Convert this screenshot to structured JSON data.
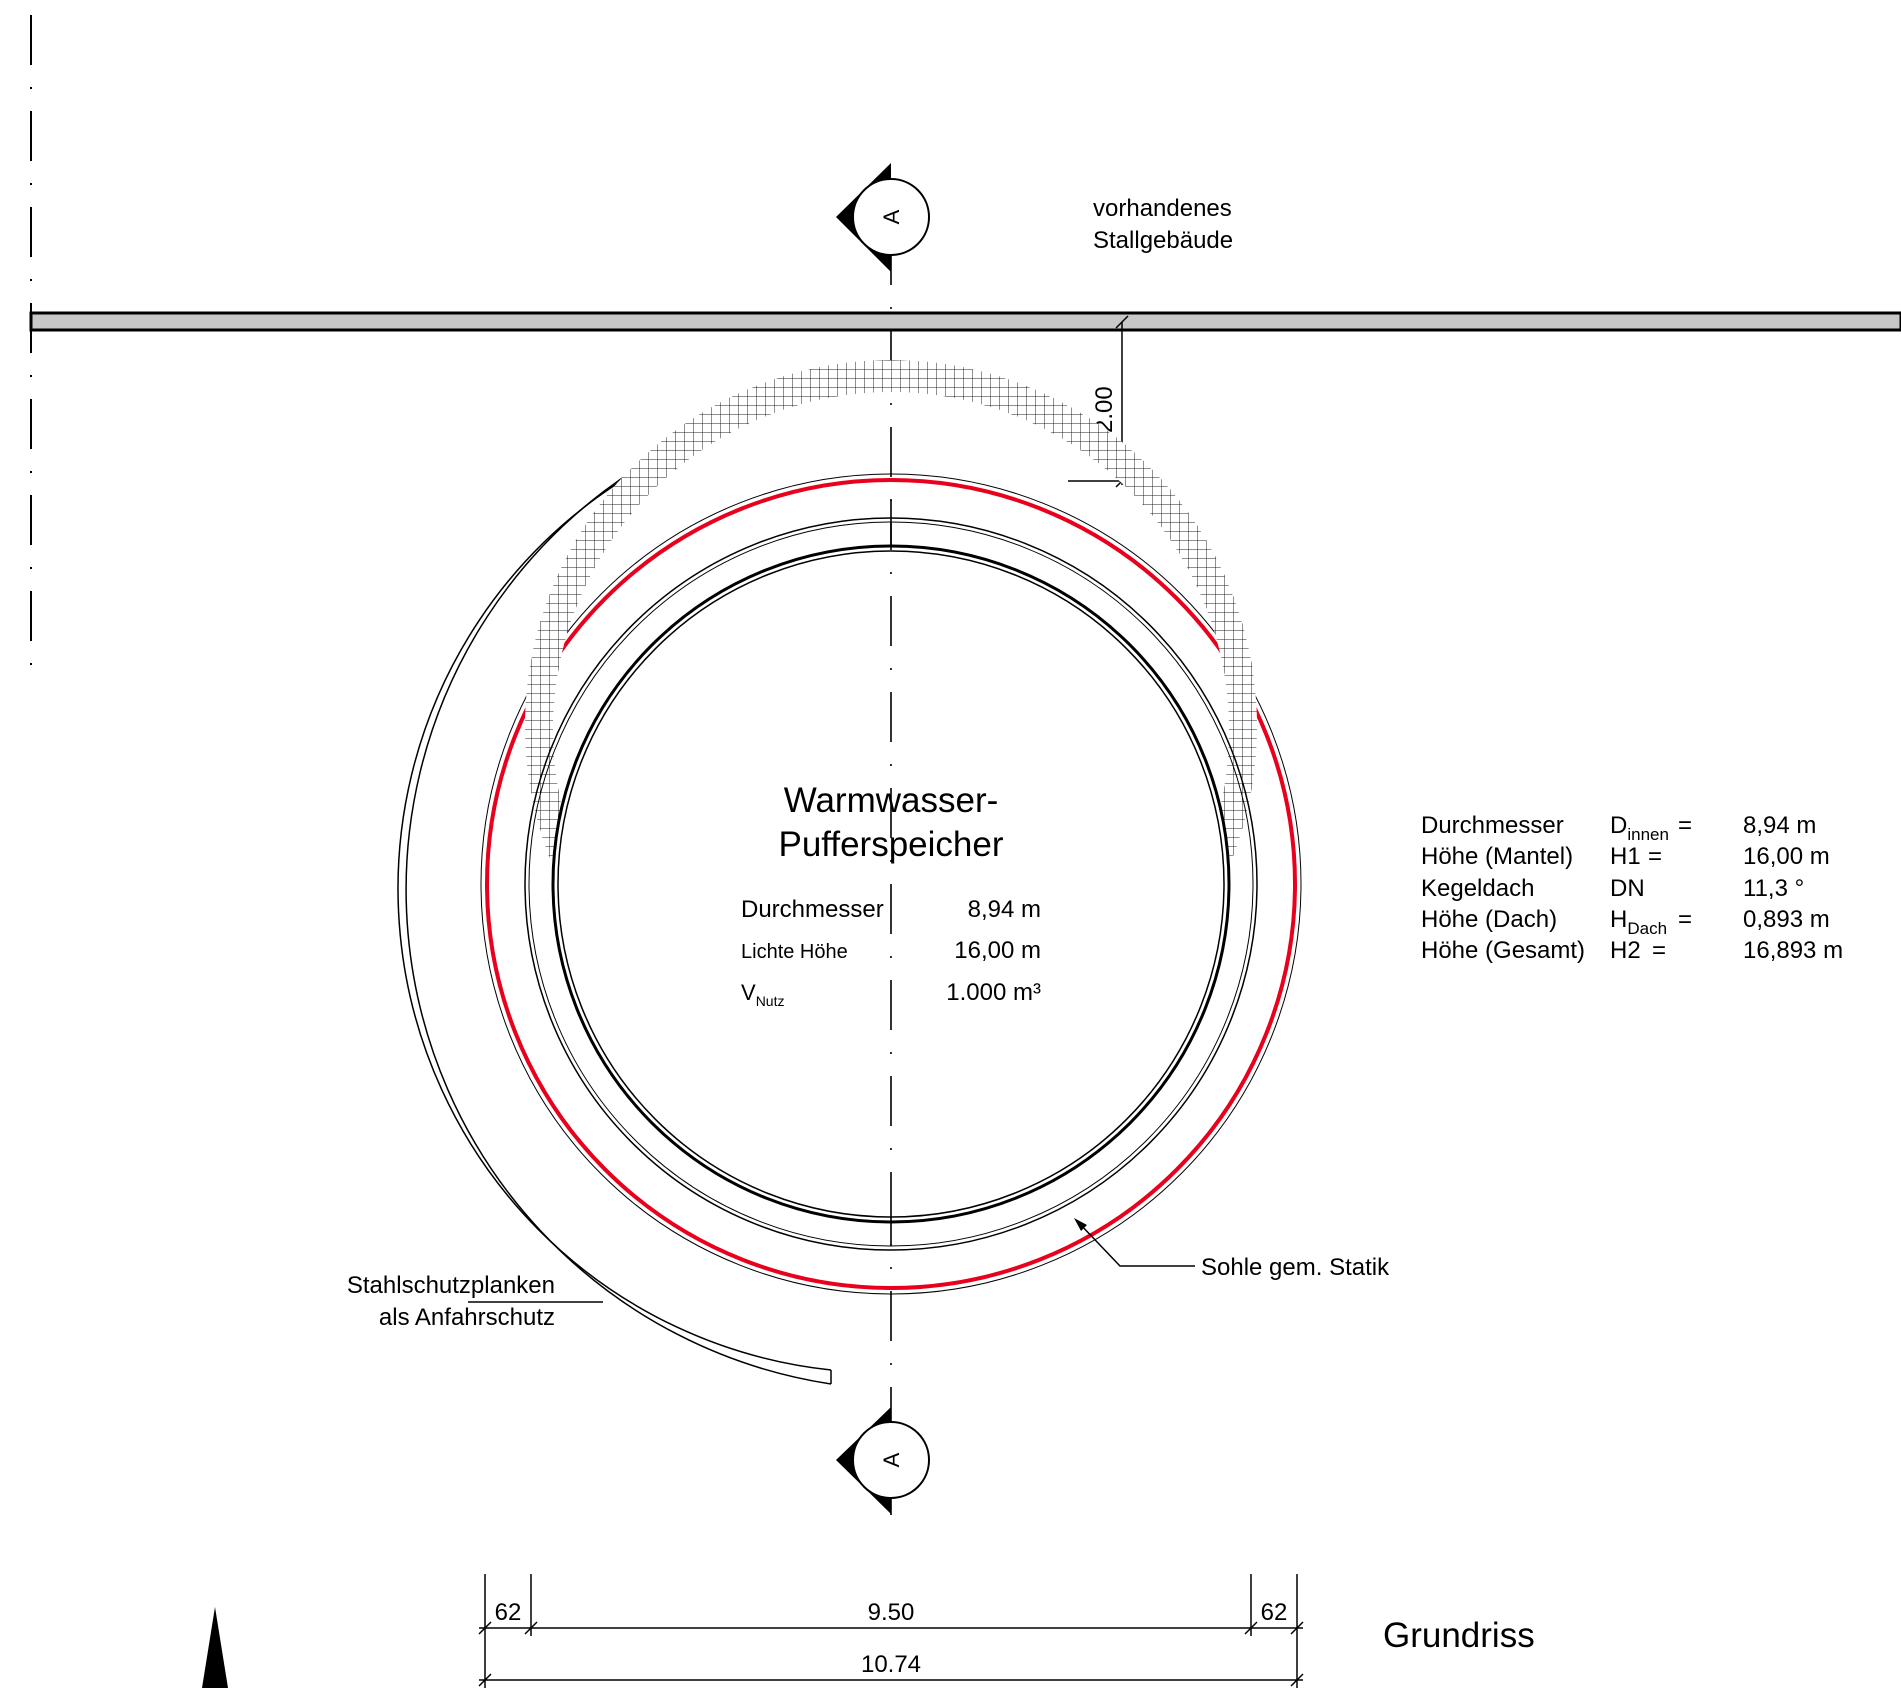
{
  "building_label": {
    "line1": "vorhandenes",
    "line2": "Stallgebäude"
  },
  "section_marker": {
    "letter": "A"
  },
  "wall_distance": {
    "value": "2.00"
  },
  "tank": {
    "title_line1": "Warmwasser-",
    "title_line2": "Pufferspeicher",
    "rows": [
      {
        "label": "Durchmesser",
        "value": "8,94 m"
      },
      {
        "label": "Lichte Höhe",
        "value": "16,00 m"
      },
      {
        "label": "V",
        "label_sub": "Nutz",
        "value": "1.000 m³"
      }
    ]
  },
  "spec_table": {
    "rows": [
      {
        "label": "Durchmesser",
        "symbol": "D",
        "symbol_sub": "innen",
        "eq": "=",
        "value": "8,94 m"
      },
      {
        "label": "Höhe (Mantel)",
        "symbol": "H1",
        "symbol_sub": "",
        "eq": "=",
        "value": "16,00 m"
      },
      {
        "label": "Kegeldach",
        "symbol": "DN",
        "symbol_sub": "",
        "eq": "",
        "value": "11,3 °"
      },
      {
        "label": "Höhe (Dach)",
        "symbol": "H",
        "symbol_sub": "Dach",
        "eq": "=",
        "value": "0,893 m"
      },
      {
        "label": "Höhe (Gesamt)",
        "symbol": "H2",
        "symbol_sub": "",
        "eq": "=",
        "value": "16,893 m"
      }
    ]
  },
  "foundation_label": "Sohle gem. Statik",
  "barrier_label": {
    "line1": "Stahlschutzplanken",
    "line2": "als Anfahrschutz"
  },
  "dimensions": {
    "left": "62",
    "middle": "9.50",
    "right": "62",
    "total": "10.74"
  },
  "view_title": "Grundriss",
  "colors": {
    "foundation_outline": "#e8001c",
    "wall_fill": "#c8c8c8",
    "line": "#000000"
  }
}
